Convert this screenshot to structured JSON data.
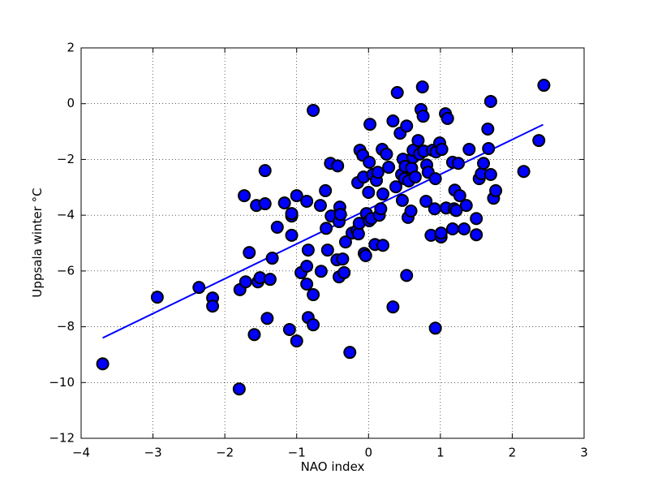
{
  "chart_data": {
    "type": "scatter",
    "xlabel": "NAO index",
    "ylabel": "Uppsala winter °C",
    "xlim": [
      -4,
      3
    ],
    "ylim": [
      -12,
      2
    ],
    "xticks": [
      {
        "value": -4,
        "label": "−4"
      },
      {
        "value": -3,
        "label": "−3"
      },
      {
        "value": -2,
        "label": "−2"
      },
      {
        "value": -1,
        "label": "−1"
      },
      0,
      1,
      2,
      3
    ],
    "yticks": [
      {
        "value": -12,
        "label": "−12"
      },
      {
        "value": -10,
        "label": "−10"
      },
      {
        "value": -8,
        "label": "−8"
      },
      {
        "value": -6,
        "label": "−6"
      },
      {
        "value": -4,
        "label": "−4"
      },
      {
        "value": -2,
        "label": "−2"
      },
      0,
      2
    ],
    "grid": true,
    "color": "#0000ff",
    "edge_color": "#000000",
    "x": [
      -3.7,
      -2.94,
      -2.36,
      -2.17,
      -2.17,
      -1.8,
      -1.79,
      -1.73,
      -1.71,
      -1.66,
      -1.59,
      -1.56,
      -1.54,
      -1.51,
      -1.44,
      -1.44,
      -1.41,
      -1.37,
      -1.34,
      -1.27,
      -1.17,
      -1.1,
      -1.07,
      -1.07,
      -1.07,
      -1.0,
      -1.0,
      -0.94,
      -0.86,
      -0.86,
      -0.86,
      -0.84,
      -0.84,
      -0.77,
      -0.77,
      -0.77,
      -0.67,
      -0.66,
      -0.6,
      -0.59,
      -0.57,
      -0.53,
      -0.52,
      -0.43,
      -0.44,
      -0.41,
      -0.41,
      -0.4,
      -0.39,
      -0.36,
      -0.34,
      -0.32,
      -0.26,
      -0.23,
      -0.16,
      -0.15,
      -0.14,
      -0.13,
      -0.12,
      -0.08,
      -0.07,
      -0.06,
      -0.04,
      -0.03,
      0.0,
      0.01,
      0.01,
      0.02,
      0.04,
      0.06,
      0.09,
      0.11,
      0.13,
      0.15,
      0.17,
      0.2,
      0.19,
      0.2,
      0.25,
      0.28,
      0.34,
      0.34,
      0.38,
      0.4,
      0.44,
      0.46,
      0.47,
      0.48,
      0.5,
      0.51,
      0.53,
      0.53,
      0.55,
      0.56,
      0.59,
      0.6,
      0.62,
      0.62,
      0.65,
      0.69,
      0.71,
      0.73,
      0.75,
      0.76,
      0.77,
      0.8,
      0.81,
      0.83,
      0.87,
      0.89,
      0.92,
      0.93,
      0.93,
      0.94,
      0.99,
      1.01,
      1.02,
      1.01,
      1.07,
      1.08,
      1.1,
      1.17,
      1.17,
      1.19,
      1.2,
      1.22,
      1.25,
      1.27,
      1.33,
      1.36,
      1.4,
      1.5,
      1.5,
      1.54,
      1.57,
      1.6,
      1.66,
      1.67,
      1.7,
      1.7,
      1.74,
      1.77,
      2.16,
      2.37,
      2.44
    ],
    "y": [
      -9.33,
      -6.94,
      -6.59,
      -6.97,
      -7.26,
      -10.23,
      -6.67,
      -3.3,
      -6.39,
      -5.34,
      -8.28,
      -3.65,
      -6.39,
      -6.24,
      -2.4,
      -3.59,
      -7.7,
      -6.3,
      -5.54,
      -4.43,
      -3.56,
      -8.1,
      -4.03,
      -4.72,
      -3.94,
      -8.51,
      -3.3,
      -6.06,
      -3.5,
      -5.83,
      -6.47,
      -5.25,
      -7.67,
      -0.24,
      -6.85,
      -7.93,
      -3.65,
      -6.01,
      -3.12,
      -4.47,
      -5.25,
      -2.14,
      -4.03,
      -2.23,
      -5.6,
      -6.21,
      -4.23,
      -3.71,
      -3.97,
      -5.57,
      -6.06,
      -4.96,
      -8.92,
      -4.64,
      -4.55,
      -2.83,
      -4.67,
      -4.29,
      -1.67,
      -1.85,
      -2.63,
      -5.37,
      -5.45,
      -3.94,
      -3.18,
      -4.2,
      -2.1,
      -0.74,
      -4.12,
      -2.54,
      -5.05,
      -2.75,
      -2.46,
      -4.0,
      -3.77,
      -5.08,
      -1.64,
      -3.24,
      -1.81,
      -2.28,
      -7.29,
      -0.62,
      -2.98,
      0.4,
      -1.06,
      -2.54,
      -3.47,
      -1.99,
      -2.69,
      -2.25,
      -0.8,
      -6.16,
      -4.08,
      -2.77,
      -3.85,
      -2.31,
      -1.93,
      -1.67,
      -2.63,
      -1.32,
      -1.81,
      -0.21,
      0.6,
      -0.45,
      -1.7,
      -3.5,
      -2.2,
      -2.46,
      -4.72,
      -1.67,
      -3.77,
      -2.69,
      -8.05,
      -1.73,
      -1.41,
      -4.78,
      -1.64,
      -4.64,
      -0.36,
      -3.74,
      -0.53,
      -2.1,
      -4.49,
      -3.77,
      -3.1,
      -3.83,
      -2.14,
      -3.3,
      -4.49,
      -3.65,
      -1.64,
      -4.12,
      -4.7,
      -2.69,
      -2.51,
      -2.14,
      -0.91,
      -1.61,
      0.08,
      -2.54,
      -3.39,
      -3.12,
      -2.43,
      -1.32,
      0.66
    ],
    "fit": {
      "color": "#0000ff",
      "x": [
        -3.7,
        2.43
      ],
      "y": [
        -8.4,
        -0.75
      ]
    }
  }
}
